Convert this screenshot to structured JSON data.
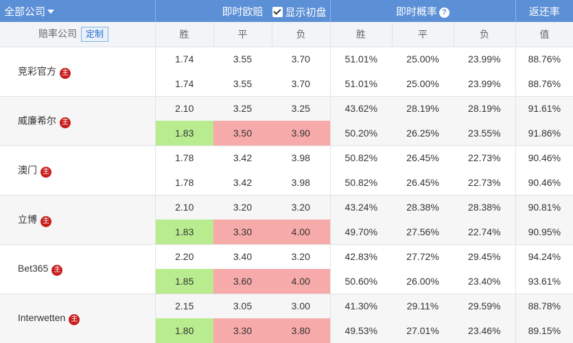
{
  "header": {
    "company_filter": "全部公司",
    "live_europe": "即时欧赔",
    "show_initial": "显示初盘",
    "live_prob": "即时概率",
    "prob_help": "?",
    "return_rate": "返还率"
  },
  "subheader": {
    "company_label": "赔率公司",
    "custom_button": "定制",
    "win": "胜",
    "draw": "平",
    "lose": "负",
    "prob_win": "胜",
    "prob_draw": "平",
    "prob_lose": "负",
    "value": "值"
  },
  "badge_text": "主",
  "colors": {
    "header_blue": "#5b8fd6",
    "up_green": "#b9ec8e",
    "down_red": "#f7aaaa",
    "badge_red": "#c81e1e"
  },
  "companies": [
    {
      "name": "竞彩官方",
      "rows": [
        {
          "win": "1.74",
          "draw": "3.55",
          "lose": "3.70",
          "p_win": "51.01%",
          "p_draw": "25.00%",
          "p_lose": "23.99%",
          "ret": "88.76%"
        },
        {
          "win": "1.74",
          "draw": "3.55",
          "lose": "3.70",
          "p_win": "51.01%",
          "p_draw": "25.00%",
          "p_lose": "23.99%",
          "ret": "88.76%"
        }
      ]
    },
    {
      "name": "威廉希尔",
      "rows": [
        {
          "win": "2.10",
          "draw": "3.25",
          "lose": "3.25",
          "p_win": "43.62%",
          "p_draw": "28.19%",
          "p_lose": "28.19%",
          "ret": "91.61%"
        },
        {
          "win": "1.83",
          "draw": "3.50",
          "lose": "3.90",
          "p_win": "50.20%",
          "p_draw": "26.25%",
          "p_lose": "23.55%",
          "ret": "91.86%"
        }
      ]
    },
    {
      "name": "澳门",
      "rows": [
        {
          "win": "1.78",
          "draw": "3.42",
          "lose": "3.98",
          "p_win": "50.82%",
          "p_draw": "26.45%",
          "p_lose": "22.73%",
          "ret": "90.46%"
        },
        {
          "win": "1.78",
          "draw": "3.42",
          "lose": "3.98",
          "p_win": "50.82%",
          "p_draw": "26.45%",
          "p_lose": "22.73%",
          "ret": "90.46%"
        }
      ]
    },
    {
      "name": "立博",
      "rows": [
        {
          "win": "2.10",
          "draw": "3.20",
          "lose": "3.20",
          "p_win": "43.24%",
          "p_draw": "28.38%",
          "p_lose": "28.38%",
          "ret": "90.81%"
        },
        {
          "win": "1.83",
          "draw": "3.30",
          "lose": "4.00",
          "p_win": "49.70%",
          "p_draw": "27.56%",
          "p_lose": "22.74%",
          "ret": "90.95%"
        }
      ]
    },
    {
      "name": "Bet365",
      "rows": [
        {
          "win": "2.20",
          "draw": "3.40",
          "lose": "3.20",
          "p_win": "42.83%",
          "p_draw": "27.72%",
          "p_lose": "29.45%",
          "ret": "94.24%"
        },
        {
          "win": "1.85",
          "draw": "3.60",
          "lose": "4.00",
          "p_win": "50.60%",
          "p_draw": "26.00%",
          "p_lose": "23.40%",
          "ret": "93.61%"
        }
      ]
    },
    {
      "name": "Interwetten",
      "rows": [
        {
          "win": "2.15",
          "draw": "3.05",
          "lose": "3.00",
          "p_win": "41.30%",
          "p_draw": "29.11%",
          "p_lose": "29.59%",
          "ret": "88.78%"
        },
        {
          "win": "1.80",
          "draw": "3.30",
          "lose": "3.80",
          "p_win": "49.53%",
          "p_draw": "27.01%",
          "p_lose": "23.46%",
          "ret": "89.15%"
        }
      ]
    }
  ]
}
